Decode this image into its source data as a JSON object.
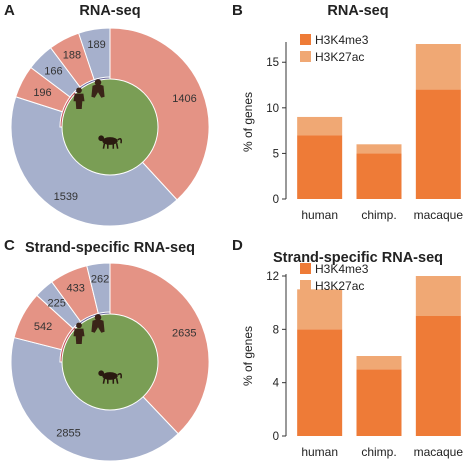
{
  "colors": {
    "red": "#e49385",
    "blue": "#a6b0cc",
    "green": "#7a9e55",
    "inner_red": "#c6525a",
    "inner_blue": "#6a6a9d",
    "h3k4me3": "#ee7b37",
    "h3k27ac": "#f0a874"
  },
  "icons": {
    "center": "monkey-silhouette-icon",
    "human": "human-silhouette-icon",
    "chimp": "chimp-silhouette-icon"
  },
  "chart_data": [
    {
      "panel": "A",
      "type": "pie",
      "title": "RNA-seq",
      "slices": [
        {
          "label": "1406",
          "value": 1406,
          "color": "red"
        },
        {
          "label": "1539",
          "value": 1539,
          "color": "blue"
        },
        {
          "label": "196",
          "value": 196,
          "color": "red"
        },
        {
          "label": "166",
          "value": 166,
          "color": "blue"
        },
        {
          "label": "188",
          "value": 188,
          "color": "red"
        },
        {
          "label": "189",
          "value": 189,
          "color": "blue"
        }
      ]
    },
    {
      "panel": "B",
      "type": "bar",
      "title": "RNA-seq",
      "ylabel": "% of genes",
      "categories": [
        "human",
        "chimp.",
        "macaque"
      ],
      "series": [
        {
          "name": "H3K4me3",
          "values": [
            7,
            5,
            12
          ],
          "color": "h3k4me3"
        },
        {
          "name": "H3K27ac",
          "values": [
            2,
            1,
            5
          ],
          "color": "h3k27ac"
        }
      ],
      "stacked": true,
      "ylim": [
        0,
        17
      ],
      "yticks": [
        "0",
        "5",
        "10",
        "15"
      ],
      "ytick_values": [
        0,
        5,
        10,
        15
      ],
      "legend": "top-left"
    },
    {
      "panel": "C",
      "type": "pie",
      "title": "Strand-specific RNA-seq",
      "slices": [
        {
          "label": "2635",
          "value": 2635,
          "color": "red"
        },
        {
          "label": "2855",
          "value": 2855,
          "color": "blue"
        },
        {
          "label": "542",
          "value": 542,
          "color": "red"
        },
        {
          "label": "225",
          "value": 225,
          "color": "blue"
        },
        {
          "label": "433",
          "value": 433,
          "color": "red"
        },
        {
          "label": "262",
          "value": 262,
          "color": "blue"
        }
      ]
    },
    {
      "panel": "D",
      "type": "bar",
      "title": "Strand-specific RNA-seq",
      "ylabel": "% of genes",
      "categories": [
        "human",
        "chimp.",
        "macaque"
      ],
      "series": [
        {
          "name": "H3K4me3",
          "values": [
            8,
            5,
            9
          ],
          "color": "h3k4me3"
        },
        {
          "name": "H3K27ac",
          "values": [
            3,
            1,
            3
          ],
          "color": "h3k27ac"
        }
      ],
      "stacked": true,
      "ylim": [
        0,
        12
      ],
      "yticks": [
        "0",
        "4",
        "8",
        "12"
      ],
      "ytick_values": [
        0,
        4,
        8,
        12
      ],
      "legend": "top-left"
    }
  ]
}
